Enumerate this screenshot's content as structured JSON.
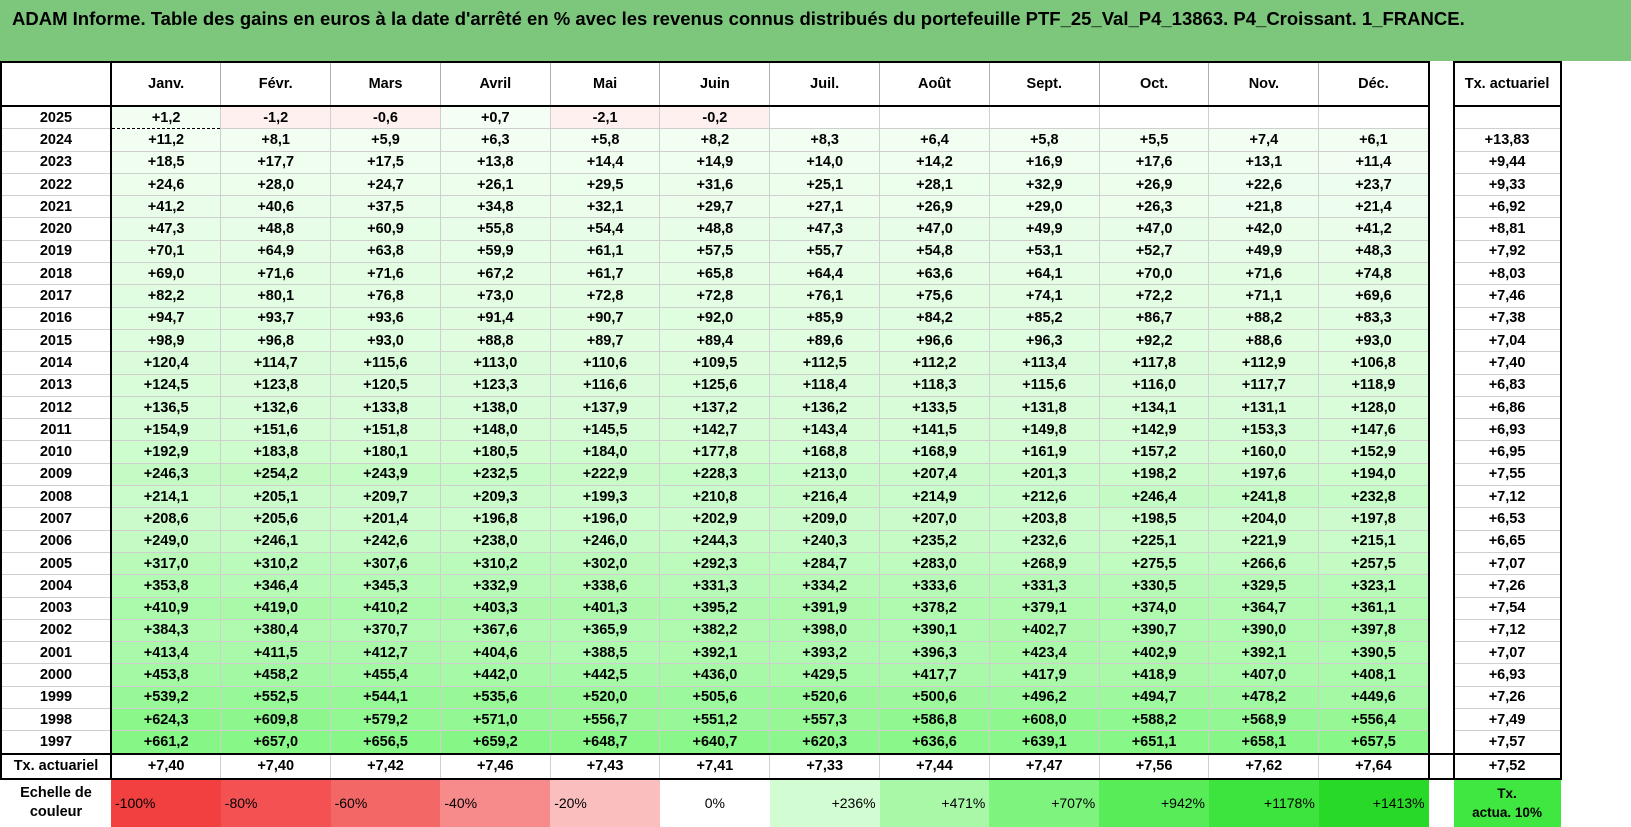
{
  "title": "ADAM Informe. Table des gains en euros à la date d'arrêté en % avec les revenus connus distribués du portefeuille PTF_25_Val_P4_13863. P4_Croissant. 1_FRANCE.",
  "months": [
    "Janv.",
    "Févr.",
    "Mars",
    "Avril",
    "Mai",
    "Juin",
    "Juil.",
    "Août",
    "Sept.",
    "Oct.",
    "Nov.",
    "Déc."
  ],
  "rate_header": "Tx. actuariel",
  "rows": [
    {
      "year": "2025",
      "values": [
        "+1,2",
        "-1,2",
        "-0,6",
        "+0,7",
        "-2,1",
        "-0,2",
        "",
        "",
        "",
        "",
        "",
        ""
      ],
      "rate": ""
    },
    {
      "year": "2024",
      "values": [
        "+11,2",
        "+8,1",
        "+5,9",
        "+6,3",
        "+5,8",
        "+8,2",
        "+8,3",
        "+6,4",
        "+5,8",
        "+5,5",
        "+7,4",
        "+6,1"
      ],
      "rate": "+13,83"
    },
    {
      "year": "2023",
      "values": [
        "+18,5",
        "+17,7",
        "+17,5",
        "+13,8",
        "+14,4",
        "+14,9",
        "+14,0",
        "+14,2",
        "+16,9",
        "+17,6",
        "+13,1",
        "+11,4"
      ],
      "rate": "+9,44"
    },
    {
      "year": "2022",
      "values": [
        "+24,6",
        "+28,0",
        "+24,7",
        "+26,1",
        "+29,5",
        "+31,6",
        "+25,1",
        "+28,1",
        "+32,9",
        "+26,9",
        "+22,6",
        "+23,7"
      ],
      "rate": "+9,33"
    },
    {
      "year": "2021",
      "values": [
        "+41,2",
        "+40,6",
        "+37,5",
        "+34,8",
        "+32,1",
        "+29,7",
        "+27,1",
        "+26,9",
        "+29,0",
        "+26,3",
        "+21,8",
        "+21,4"
      ],
      "rate": "+6,92"
    },
    {
      "year": "2020",
      "values": [
        "+47,3",
        "+48,8",
        "+60,9",
        "+55,8",
        "+54,4",
        "+48,8",
        "+47,3",
        "+47,0",
        "+49,9",
        "+47,0",
        "+42,0",
        "+41,2"
      ],
      "rate": "+8,81"
    },
    {
      "year": "2019",
      "values": [
        "+70,1",
        "+64,9",
        "+63,8",
        "+59,9",
        "+61,1",
        "+57,5",
        "+55,7",
        "+54,8",
        "+53,1",
        "+52,7",
        "+49,9",
        "+48,3"
      ],
      "rate": "+7,92"
    },
    {
      "year": "2018",
      "values": [
        "+69,0",
        "+71,6",
        "+71,6",
        "+67,2",
        "+61,7",
        "+65,8",
        "+64,4",
        "+63,6",
        "+64,1",
        "+70,0",
        "+71,6",
        "+74,8"
      ],
      "rate": "+8,03"
    },
    {
      "year": "2017",
      "values": [
        "+82,2",
        "+80,1",
        "+76,8",
        "+73,0",
        "+72,8",
        "+72,8",
        "+76,1",
        "+75,6",
        "+74,1",
        "+72,2",
        "+71,1",
        "+69,6"
      ],
      "rate": "+7,46"
    },
    {
      "year": "2016",
      "values": [
        "+94,7",
        "+93,7",
        "+93,6",
        "+91,4",
        "+90,7",
        "+92,0",
        "+85,9",
        "+84,2",
        "+85,2",
        "+86,7",
        "+88,2",
        "+83,3"
      ],
      "rate": "+7,38"
    },
    {
      "year": "2015",
      "values": [
        "+98,9",
        "+96,8",
        "+93,0",
        "+88,8",
        "+89,7",
        "+89,4",
        "+89,6",
        "+96,6",
        "+96,3",
        "+92,2",
        "+88,6",
        "+93,0"
      ],
      "rate": "+7,04"
    },
    {
      "year": "2014",
      "values": [
        "+120,4",
        "+114,7",
        "+115,6",
        "+113,0",
        "+110,6",
        "+109,5",
        "+112,5",
        "+112,2",
        "+113,4",
        "+117,8",
        "+112,9",
        "+106,8"
      ],
      "rate": "+7,40"
    },
    {
      "year": "2013",
      "values": [
        "+124,5",
        "+123,8",
        "+120,5",
        "+123,3",
        "+116,6",
        "+125,6",
        "+118,4",
        "+118,3",
        "+115,6",
        "+116,0",
        "+117,7",
        "+118,9"
      ],
      "rate": "+6,83"
    },
    {
      "year": "2012",
      "values": [
        "+136,5",
        "+132,6",
        "+133,8",
        "+138,0",
        "+137,9",
        "+137,2",
        "+136,2",
        "+133,5",
        "+131,8",
        "+134,1",
        "+131,1",
        "+128,0"
      ],
      "rate": "+6,86"
    },
    {
      "year": "2011",
      "values": [
        "+154,9",
        "+151,6",
        "+151,8",
        "+148,0",
        "+145,5",
        "+142,7",
        "+143,4",
        "+141,5",
        "+149,8",
        "+142,9",
        "+153,3",
        "+147,6"
      ],
      "rate": "+6,93"
    },
    {
      "year": "2010",
      "values": [
        "+192,9",
        "+183,8",
        "+180,1",
        "+180,5",
        "+184,0",
        "+177,8",
        "+168,8",
        "+168,9",
        "+161,9",
        "+157,2",
        "+160,0",
        "+152,9"
      ],
      "rate": "+6,95"
    },
    {
      "year": "2009",
      "values": [
        "+246,3",
        "+254,2",
        "+243,9",
        "+232,5",
        "+222,9",
        "+228,3",
        "+213,0",
        "+207,4",
        "+201,3",
        "+198,2",
        "+197,6",
        "+194,0"
      ],
      "rate": "+7,55"
    },
    {
      "year": "2008",
      "values": [
        "+214,1",
        "+205,1",
        "+209,7",
        "+209,3",
        "+199,3",
        "+210,8",
        "+216,4",
        "+214,9",
        "+212,6",
        "+246,4",
        "+241,8",
        "+232,8"
      ],
      "rate": "+7,12"
    },
    {
      "year": "2007",
      "values": [
        "+208,6",
        "+205,6",
        "+201,4",
        "+196,8",
        "+196,0",
        "+202,9",
        "+209,0",
        "+207,0",
        "+203,8",
        "+198,5",
        "+204,0",
        "+197,8"
      ],
      "rate": "+6,53"
    },
    {
      "year": "2006",
      "values": [
        "+249,0",
        "+246,1",
        "+242,6",
        "+238,0",
        "+246,0",
        "+244,3",
        "+240,3",
        "+235,2",
        "+232,6",
        "+225,1",
        "+221,9",
        "+215,1"
      ],
      "rate": "+6,65"
    },
    {
      "year": "2005",
      "values": [
        "+317,0",
        "+310,2",
        "+307,6",
        "+310,2",
        "+302,0",
        "+292,3",
        "+284,7",
        "+283,0",
        "+268,9",
        "+275,5",
        "+266,6",
        "+257,5"
      ],
      "rate": "+7,07"
    },
    {
      "year": "2004",
      "values": [
        "+353,8",
        "+346,4",
        "+345,3",
        "+332,9",
        "+338,6",
        "+331,3",
        "+334,2",
        "+333,6",
        "+331,3",
        "+330,5",
        "+329,5",
        "+323,1"
      ],
      "rate": "+7,26"
    },
    {
      "year": "2003",
      "values": [
        "+410,9",
        "+419,0",
        "+410,2",
        "+403,3",
        "+401,3",
        "+395,2",
        "+391,9",
        "+378,2",
        "+379,1",
        "+374,0",
        "+364,7",
        "+361,1"
      ],
      "rate": "+7,54"
    },
    {
      "year": "2002",
      "values": [
        "+384,3",
        "+380,4",
        "+370,7",
        "+367,6",
        "+365,9",
        "+382,2",
        "+398,0",
        "+390,1",
        "+402,7",
        "+390,7",
        "+390,0",
        "+397,8"
      ],
      "rate": "+7,12"
    },
    {
      "year": "2001",
      "values": [
        "+413,4",
        "+411,5",
        "+412,7",
        "+404,6",
        "+388,5",
        "+392,1",
        "+393,2",
        "+396,3",
        "+423,4",
        "+402,9",
        "+392,1",
        "+390,5"
      ],
      "rate": "+7,07"
    },
    {
      "year": "2000",
      "values": [
        "+453,8",
        "+458,2",
        "+455,4",
        "+442,0",
        "+442,5",
        "+436,0",
        "+429,5",
        "+417,7",
        "+417,9",
        "+418,9",
        "+407,0",
        "+408,1"
      ],
      "rate": "+6,93"
    },
    {
      "year": "1999",
      "values": [
        "+539,2",
        "+552,5",
        "+544,1",
        "+535,6",
        "+520,0",
        "+505,6",
        "+520,6",
        "+500,6",
        "+496,2",
        "+494,7",
        "+478,2",
        "+449,6"
      ],
      "rate": "+7,26"
    },
    {
      "year": "1998",
      "values": [
        "+624,3",
        "+609,8",
        "+579,2",
        "+571,0",
        "+556,7",
        "+551,2",
        "+557,3",
        "+586,8",
        "+608,0",
        "+588,2",
        "+568,9",
        "+556,4"
      ],
      "rate": "+7,49"
    },
    {
      "year": "1997",
      "values": [
        "+661,2",
        "+657,0",
        "+656,5",
        "+659,2",
        "+648,7",
        "+640,7",
        "+620,3",
        "+636,6",
        "+639,1",
        "+651,1",
        "+658,1",
        "+657,5"
      ],
      "rate": "+7,57"
    }
  ],
  "avg_row": {
    "label": "Tx. actuariel",
    "values": [
      "+7,40",
      "+7,40",
      "+7,42",
      "+7,46",
      "+7,43",
      "+7,41",
      "+7,33",
      "+7,44",
      "+7,47",
      "+7,56",
      "+7,62",
      "+7,64"
    ],
    "rate": "+7,52"
  },
  "scale": {
    "label_line1": "Echelle de",
    "label_line2": "couleur",
    "steps": [
      {
        "label": "-100%",
        "color": "#f23f3f",
        "align": "left"
      },
      {
        "label": "-80%",
        "color": "#f45252",
        "align": "left"
      },
      {
        "label": "-60%",
        "color": "#f46767",
        "align": "left"
      },
      {
        "label": "-40%",
        "color": "#f78a8a",
        "align": "left"
      },
      {
        "label": "-20%",
        "color": "#fbbebe",
        "align": "left"
      },
      {
        "label": "0%",
        "color": "#ffffff",
        "align": "center"
      },
      {
        "label": "+236%",
        "color": "#d2fcd2",
        "align": "right"
      },
      {
        "label": "+471%",
        "color": "#a8f8a8",
        "align": "right"
      },
      {
        "label": "+707%",
        "color": "#7ef37e",
        "align": "right"
      },
      {
        "label": "+942%",
        "color": "#58ec58",
        "align": "right"
      },
      {
        "label": "+1178%",
        "color": "#3ee43e",
        "align": "right"
      },
      {
        "label": "+1413%",
        "color": "#28d928",
        "align": "right"
      }
    ],
    "rate_legend_line1": "Tx.",
    "rate_legend_line2": "actua. 10%",
    "rate_legend_color": "#41e741"
  },
  "colors": {
    "title_bg": "#7dc77d",
    "negative_tint": "#fff0f0",
    "positive_light": "#f4fef4",
    "positive_strong": "#86f786"
  }
}
